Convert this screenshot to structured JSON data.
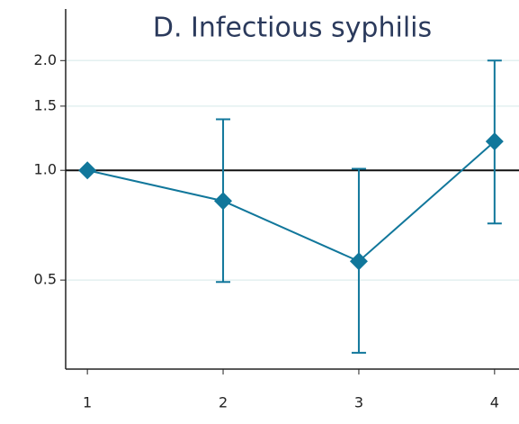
{
  "chart_data": {
    "type": "line",
    "title": "D. Infectious syphilis",
    "x": [
      1,
      2,
      3,
      4
    ],
    "series": [
      {
        "color": "#11779b",
        "values": [
          1.0,
          0.824,
          0.563,
          1.2
        ],
        "lower": [
          null,
          0.494,
          0.316,
          0.715
        ],
        "upper": [
          null,
          1.38,
          1.01,
          2.0
        ]
      }
    ],
    "xlim": [
      0.84,
      4.18
    ],
    "xticks": [
      1,
      2,
      3,
      4
    ],
    "ylim": [
      0.285,
      2.77
    ],
    "yticks": [
      0.5,
      {
        "value": 1,
        "label": "1.0"
      },
      1.5,
      {
        "value": 2,
        "label": "2.0"
      }
    ],
    "log_y": true,
    "grid": true,
    "reference_line": 1
  }
}
